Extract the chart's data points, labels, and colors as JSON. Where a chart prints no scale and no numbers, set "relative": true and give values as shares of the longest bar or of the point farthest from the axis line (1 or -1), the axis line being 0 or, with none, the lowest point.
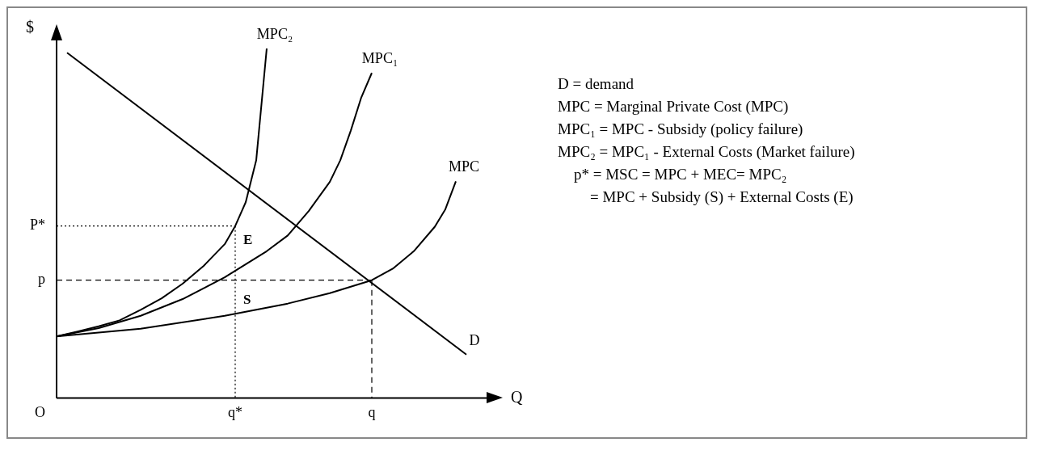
{
  "chart_data": {
    "type": "line",
    "relative": true,
    "xlabel": "Q",
    "ylabel": "$",
    "categories": [
      null,
      null,
      null,
      null,
      null,
      null,
      null,
      null,
      null,
      null,
      null,
      null,
      null,
      null,
      null,
      null,
      null,
      "q*",
      null,
      null,
      null,
      null,
      null,
      null,
      null,
      null,
      null,
      null,
      null,
      null,
      "q",
      null,
      null,
      null,
      null,
      null,
      null,
      null,
      null,
      null,
      null
    ],
    "series": [
      {
        "name": "D",
        "color": "#000000",
        "values": [
          null,
          0.988,
          null,
          null,
          null,
          null,
          null,
          null,
          null,
          null,
          null,
          null,
          null,
          null,
          null,
          null,
          null,
          null,
          null,
          null,
          null,
          null,
          null,
          null,
          null,
          null,
          null,
          null,
          null,
          null,
          null,
          null,
          null,
          null,
          null,
          null,
          null,
          null,
          null,
          0.124,
          null
        ]
      },
      {
        "name": "MPC₂",
        "color": "#000000",
        "values": [
          0.176,
          null,
          0.19,
          null,
          0.205,
          null,
          0.222,
          null,
          0.252,
          null,
          0.285,
          null,
          0.327,
          null,
          0.378,
          null,
          0.44,
          0.492,
          0.56,
          0.68,
          1.0,
          null,
          null,
          null,
          null,
          null,
          null,
          null,
          null,
          null,
          null,
          null,
          null,
          null,
          null,
          null,
          null,
          null,
          null,
          null,
          null
        ]
      },
      {
        "name": "MPC₁",
        "color": "#000000",
        "values": [
          0.176,
          null,
          null,
          null,
          0.2,
          null,
          null,
          null,
          0.235,
          null,
          null,
          null,
          0.283,
          null,
          null,
          null,
          0.345,
          null,
          null,
          null,
          0.42,
          null,
          0.465,
          null,
          0.535,
          null,
          0.618,
          0.68,
          0.765,
          0.86,
          0.93,
          null,
          null,
          null,
          null,
          null,
          null,
          null,
          null,
          null,
          null
        ]
      },
      {
        "name": "MPC",
        "color": "#000000",
        "values": [
          0.176,
          null,
          null,
          null,
          null,
          null,
          null,
          null,
          0.198,
          null,
          null,
          null,
          null,
          null,
          null,
          null,
          0.235,
          null,
          null,
          null,
          null,
          null,
          0.27,
          null,
          null,
          null,
          0.3,
          null,
          null,
          null,
          0.337,
          null,
          0.37,
          null,
          0.42,
          null,
          0.49,
          0.54,
          0.62,
          null,
          null
        ]
      },
      {
        "name": "P*",
        "color": "#000000",
        "line_style": "dotted",
        "values": [
          0.492,
          null,
          null,
          null,
          null,
          null,
          null,
          null,
          null,
          null,
          null,
          null,
          null,
          null,
          null,
          null,
          null,
          0.492,
          null,
          null,
          null,
          null,
          null,
          null,
          null,
          null,
          null,
          null,
          null,
          null,
          null,
          null,
          null,
          null,
          null,
          null,
          null,
          null,
          null,
          null,
          null
        ]
      },
      {
        "name": "p",
        "color": "#000000",
        "line_style": "dashed",
        "values": [
          0.337,
          null,
          null,
          null,
          null,
          null,
          null,
          null,
          null,
          null,
          null,
          null,
          null,
          null,
          null,
          null,
          null,
          null,
          null,
          null,
          null,
          null,
          null,
          null,
          null,
          null,
          null,
          null,
          null,
          null,
          0.337,
          null,
          null,
          null,
          null,
          null,
          null,
          null,
          null,
          null,
          null
        ]
      }
    ],
    "ref_lines": [
      {
        "axis": "x",
        "value": "q*",
        "line_style": "dotted",
        "color": "#000000"
      },
      {
        "axis": "x",
        "value": "q",
        "line_style": "dashed",
        "color": "#000000"
      }
    ],
    "annotations": [
      "O",
      "E",
      "S",
      "D   = demand",
      "MPC  = Marginal Private Cost (MPC)",
      "MPC₁ = MPC - Subsidy (policy failure)",
      "MPC₂ = MPC₁ - External Costs (Market failure)",
      "p* = MSC = MPC + MEC= MPC₂",
      "= MPC + Subsidy (S)  + External Costs (E)"
    ],
    "marker": "none"
  }
}
